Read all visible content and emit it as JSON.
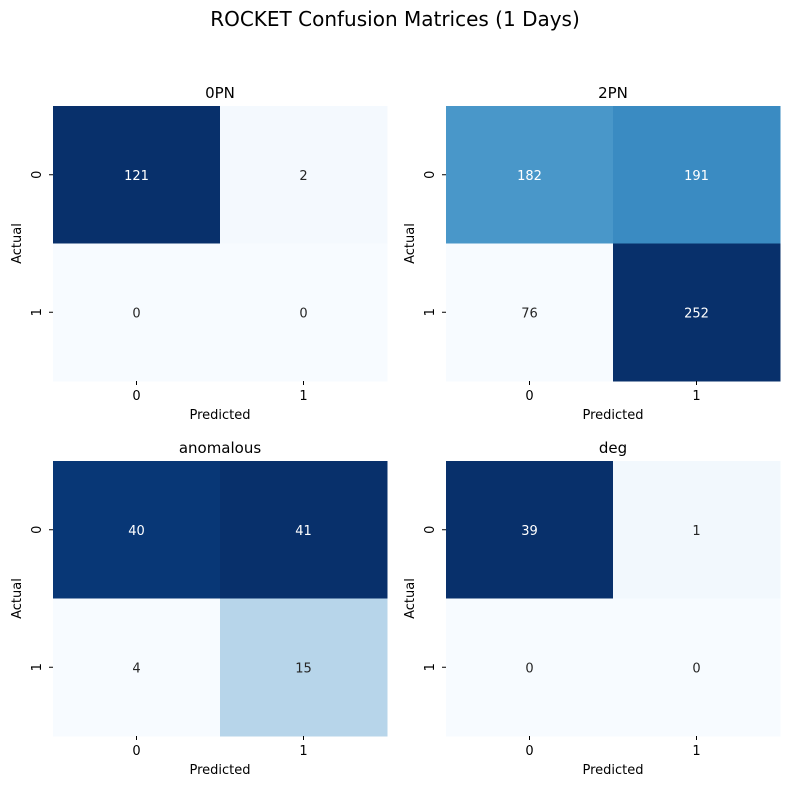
{
  "figure": {
    "title": "ROCKET Confusion Matrices (1 Days)"
  },
  "chart_data": [
    {
      "type": "heatmap",
      "title": "0PN",
      "xlabel": "Predicted",
      "ylabel": "Actual",
      "x_ticks": [
        "0",
        "1"
      ],
      "y_ticks": [
        "0",
        "1"
      ],
      "colormap": "Blues",
      "values": [
        [
          121,
          2
        ],
        [
          0,
          0
        ]
      ]
    },
    {
      "type": "heatmap",
      "title": "2PN",
      "xlabel": "Predicted",
      "ylabel": "Actual",
      "x_ticks": [
        "0",
        "1"
      ],
      "y_ticks": [
        "0",
        "1"
      ],
      "colormap": "Blues",
      "values": [
        [
          182,
          191
        ],
        [
          76,
          252
        ]
      ]
    },
    {
      "type": "heatmap",
      "title": "anomalous",
      "xlabel": "Predicted",
      "ylabel": "Actual",
      "x_ticks": [
        "0",
        "1"
      ],
      "y_ticks": [
        "0",
        "1"
      ],
      "colormap": "Blues",
      "values": [
        [
          40,
          41
        ],
        [
          4,
          15
        ]
      ]
    },
    {
      "type": "heatmap",
      "title": "deg",
      "xlabel": "Predicted",
      "ylabel": "Actual",
      "x_ticks": [
        "0",
        "1"
      ],
      "y_ticks": [
        "0",
        "1"
      ],
      "colormap": "Blues",
      "values": [
        [
          39,
          1
        ],
        [
          0,
          0
        ]
      ]
    }
  ]
}
